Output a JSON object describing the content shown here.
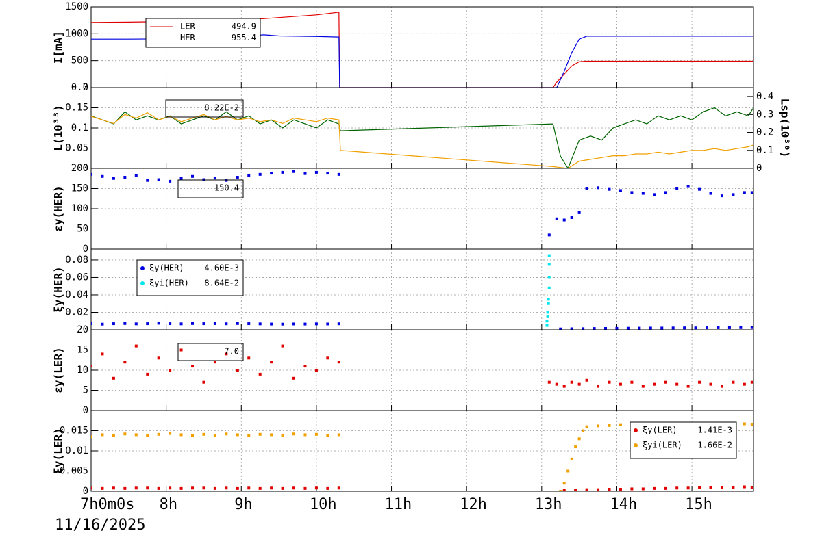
{
  "chart_data": [
    {
      "type": "line",
      "ylabel": "I[mA]",
      "xlim": [
        7,
        15.82
      ],
      "xticks": [
        7,
        8,
        9,
        10,
        11,
        12,
        13,
        14,
        15
      ],
      "ylim": [
        0,
        1500
      ],
      "yticks": [
        0,
        500,
        1000,
        1500
      ],
      "grid": true,
      "series": [
        {
          "name": "LER",
          "legend_value": "494.9",
          "color": "#e00000",
          "x": [
            7,
            7.5,
            8,
            8.5,
            9,
            9.3,
            9.5,
            10,
            10.3,
            10.31,
            11,
            12,
            13,
            13.15,
            13.2,
            13.3,
            13.4,
            13.5,
            13.6,
            14,
            15,
            15.82
          ],
          "values": [
            1210,
            1215,
            1225,
            1240,
            1260,
            1280,
            1300,
            1350,
            1400,
            0,
            0,
            0,
            0,
            0,
            100,
            250,
            400,
            480,
            490,
            490,
            490,
            490
          ]
        },
        {
          "name": "HER",
          "legend_value": "955.4",
          "color": "#0000e0",
          "x": [
            7,
            7.5,
            8,
            8.5,
            9,
            9.3,
            9.5,
            10,
            10.3,
            10.31,
            11,
            12,
            13,
            13.15,
            13.2,
            13.3,
            13.4,
            13.5,
            13.6,
            14,
            15,
            15.82
          ],
          "values": [
            900,
            900,
            905,
            915,
            950,
            980,
            960,
            950,
            940,
            0,
            0,
            0,
            0,
            0,
            0,
            300,
            650,
            900,
            955,
            955,
            955,
            955
          ]
        }
      ]
    },
    {
      "type": "line",
      "ylabel": "L(10³³)",
      "y2label": "Lsp(10³⁰)",
      "legend_text": "8.22E-2",
      "xlim": [
        7,
        15.82
      ],
      "xticks": [
        7,
        8,
        9,
        10,
        11,
        12,
        13,
        14,
        15
      ],
      "ylim": [
        0,
        0.2
      ],
      "yticks": [
        0,
        0.05,
        0.1,
        0.15,
        0.2
      ],
      "y2lim": [
        0,
        0.45
      ],
      "y2ticks": [
        0,
        0.1,
        0.2,
        0.3,
        0.4
      ],
      "grid": true,
      "series": [
        {
          "color": "#006400",
          "x": [
            7.0,
            7.15,
            7.3,
            7.45,
            7.6,
            7.75,
            7.9,
            8.05,
            8.2,
            8.35,
            8.5,
            8.65,
            8.8,
            8.95,
            9.1,
            9.25,
            9.4,
            9.55,
            9.7,
            9.85,
            10.0,
            10.15,
            10.3,
            10.32,
            13.15,
            13.25,
            13.35,
            13.5,
            13.65,
            13.8,
            13.95,
            14.1,
            14.25,
            14.4,
            14.55,
            14.7,
            14.85,
            15.0,
            15.15,
            15.3,
            15.45,
            15.6,
            15.75,
            15.82
          ],
          "values": [
            0.13,
            0.12,
            0.11,
            0.14,
            0.12,
            0.13,
            0.12,
            0.13,
            0.11,
            0.12,
            0.13,
            0.12,
            0.14,
            0.12,
            0.13,
            0.11,
            0.12,
            0.1,
            0.12,
            0.11,
            0.1,
            0.12,
            0.11,
            0.093,
            0.11,
            0.03,
            0.0,
            0.07,
            0.08,
            0.07,
            0.1,
            0.11,
            0.12,
            0.11,
            0.13,
            0.12,
            0.13,
            0.12,
            0.14,
            0.15,
            0.13,
            0.14,
            0.13,
            0.15
          ]
        },
        {
          "color": "#f0a000",
          "axis": "y2",
          "x": [
            7.0,
            7.15,
            7.3,
            7.45,
            7.6,
            7.75,
            7.9,
            8.05,
            8.2,
            8.35,
            8.5,
            8.65,
            8.8,
            8.95,
            9.1,
            9.25,
            9.4,
            9.55,
            9.7,
            9.85,
            10.0,
            10.15,
            10.3,
            10.32,
            13.15,
            13.25,
            13.35,
            13.5,
            13.65,
            13.8,
            13.95,
            14.1,
            14.25,
            14.4,
            14.55,
            14.7,
            14.85,
            15.0,
            15.15,
            15.3,
            15.45,
            15.6,
            15.75,
            15.82
          ],
          "values": [
            0.29,
            0.27,
            0.25,
            0.3,
            0.28,
            0.31,
            0.27,
            0.29,
            0.26,
            0.28,
            0.3,
            0.27,
            0.29,
            0.27,
            0.28,
            0.26,
            0.27,
            0.25,
            0.28,
            0.27,
            0.26,
            0.28,
            0.27,
            0.1,
            0.01,
            0.005,
            0.0,
            0.04,
            0.05,
            0.06,
            0.07,
            0.07,
            0.08,
            0.08,
            0.09,
            0.08,
            0.09,
            0.1,
            0.1,
            0.11,
            0.1,
            0.11,
            0.12,
            0.13
          ]
        }
      ]
    },
    {
      "type": "scatter",
      "ylabel": "εy(HER)",
      "legend_text": "150.4",
      "xlim": [
        7,
        15.82
      ],
      "xticks": [
        7,
        8,
        9,
        10,
        11,
        12,
        13,
        14,
        15
      ],
      "ylim": [
        0,
        200
      ],
      "yticks": [
        0,
        50,
        100,
        150,
        200
      ],
      "grid": true,
      "series": [
        {
          "color": "#0000e0",
          "x": [
            7.0,
            7.15,
            7.3,
            7.45,
            7.6,
            7.75,
            7.9,
            8.05,
            8.2,
            8.35,
            8.5,
            8.65,
            8.8,
            8.95,
            9.1,
            9.25,
            9.4,
            9.55,
            9.7,
            9.85,
            10.0,
            10.15,
            10.3,
            13.1,
            13.2,
            13.3,
            13.4,
            13.5,
            13.6,
            13.75,
            13.9,
            14.05,
            14.2,
            14.35,
            14.5,
            14.65,
            14.8,
            14.95,
            15.1,
            15.25,
            15.4,
            15.55,
            15.7,
            15.8
          ],
          "values": [
            185,
            180,
            175,
            178,
            182,
            170,
            172,
            168,
            175,
            180,
            172,
            176,
            170,
            178,
            182,
            185,
            188,
            190,
            192,
            187,
            190,
            188,
            185,
            35,
            75,
            72,
            78,
            90,
            150,
            152,
            148,
            145,
            140,
            138,
            135,
            140,
            150,
            155,
            148,
            138,
            132,
            135,
            140,
            140
          ]
        }
      ]
    },
    {
      "type": "scatter",
      "ylabel": "ξy(HER)",
      "xlim": [
        7,
        15.82
      ],
      "xticks": [
        7,
        8,
        9,
        10,
        11,
        12,
        13,
        14,
        15
      ],
      "ylim": [
        0,
        0.0925
      ],
      "yticks": [
        0.02,
        0.04,
        0.06,
        0.08
      ],
      "grid": true,
      "series": [
        {
          "name": "ξy(HER)",
          "legend_value": "4.60E-3",
          "color": "#0000e0",
          "x": [
            7.0,
            7.15,
            7.3,
            7.45,
            7.6,
            7.75,
            7.9,
            8.05,
            8.2,
            8.35,
            8.5,
            8.65,
            8.8,
            8.95,
            9.1,
            9.25,
            9.4,
            9.55,
            9.7,
            9.85,
            10.0,
            10.15,
            10.3,
            13.25,
            13.4,
            13.55,
            13.7,
            13.85,
            14.0,
            14.15,
            14.3,
            14.45,
            14.6,
            14.75,
            14.9,
            15.05,
            15.2,
            15.35,
            15.5,
            15.65,
            15.8
          ],
          "values": [
            0.007,
            0.0065,
            0.007,
            0.0072,
            0.0068,
            0.007,
            0.0075,
            0.007,
            0.0068,
            0.0072,
            0.007,
            0.0071,
            0.0069,
            0.0072,
            0.007,
            0.0068,
            0.0066,
            0.0065,
            0.0067,
            0.0066,
            0.0068,
            0.0067,
            0.0069,
            0.001,
            0.0012,
            0.0013,
            0.0015,
            0.0016,
            0.0017,
            0.0018,
            0.0019,
            0.002,
            0.002,
            0.0021,
            0.0022,
            0.0022,
            0.0023,
            0.0024,
            0.0024,
            0.0025,
            0.0026
          ]
        },
        {
          "name": "ξyi(HER)",
          "legend_value": "8.64E-2",
          "color": "#00e5ee",
          "x": [
            13.07,
            13.07,
            13.08,
            13.08,
            13.09,
            13.09,
            13.1,
            13.1,
            13.1,
            13.1
          ],
          "values": [
            0.005,
            0.01,
            0.015,
            0.02,
            0.03,
            0.035,
            0.048,
            0.06,
            0.075,
            0.085
          ]
        }
      ]
    },
    {
      "type": "scatter",
      "ylabel": "εy(LER)",
      "legend_text": "7.0",
      "xlim": [
        7,
        15.82
      ],
      "xticks": [
        7,
        8,
        9,
        10,
        11,
        12,
        13,
        14,
        15
      ],
      "ylim": [
        0,
        20
      ],
      "yticks": [
        0,
        5,
        10,
        15,
        20
      ],
      "grid": true,
      "series": [
        {
          "color": "#e00000",
          "x": [
            7.0,
            7.15,
            7.3,
            7.45,
            7.6,
            7.75,
            7.9,
            8.05,
            8.2,
            8.35,
            8.5,
            8.65,
            8.8,
            8.95,
            9.1,
            9.25,
            9.4,
            9.55,
            9.7,
            9.85,
            10.0,
            10.15,
            10.3,
            13.1,
            13.2,
            13.3,
            13.4,
            13.5,
            13.6,
            13.75,
            13.9,
            14.05,
            14.2,
            14.35,
            14.5,
            14.65,
            14.8,
            14.95,
            15.1,
            15.25,
            15.4,
            15.55,
            15.7,
            15.8
          ],
          "values": [
            11,
            14,
            8,
            12,
            16,
            9,
            13,
            10,
            15,
            11,
            7,
            12,
            14,
            10,
            13,
            9,
            12,
            16,
            8,
            11,
            10,
            13,
            12,
            7,
            6.5,
            6,
            7,
            6.5,
            7.5,
            6,
            7,
            6.5,
            7,
            6,
            6.5,
            7,
            6.5,
            6,
            7,
            6.5,
            6,
            7,
            6.5,
            7
          ]
        }
      ]
    },
    {
      "type": "scatter",
      "ylabel": "ξy(LER)",
      "date": "11/16/2025",
      "xlim": [
        7,
        15.82
      ],
      "xticks": [
        {
          "value": 7,
          "label": "7h0m0s"
        },
        {
          "value": 8,
          "label": "8h"
        },
        {
          "value": 9,
          "label": "9h"
        },
        {
          "value": 10,
          "label": "10h"
        },
        {
          "value": 11,
          "label": "11h"
        },
        {
          "value": 12,
          "label": "12h"
        },
        {
          "value": 13,
          "label": "13h"
        },
        {
          "value": 14,
          "label": "14h"
        },
        {
          "value": 15,
          "label": "15h"
        }
      ],
      "ylim": [
        0,
        0.02
      ],
      "yticks": [
        0,
        0.005,
        0.01,
        0.015
      ],
      "grid": true,
      "series": [
        {
          "name": "ξy(LER)",
          "legend_value": "1.41E-3",
          "color": "#e00000",
          "x": [
            7.0,
            7.15,
            7.3,
            7.45,
            7.6,
            7.75,
            7.9,
            8.05,
            8.2,
            8.35,
            8.5,
            8.65,
            8.8,
            8.95,
            9.1,
            9.25,
            9.4,
            9.55,
            9.7,
            9.85,
            10.0,
            10.15,
            10.3,
            13.3,
            13.45,
            13.6,
            13.75,
            13.9,
            14.05,
            14.2,
            14.35,
            14.5,
            14.65,
            14.8,
            14.95,
            15.1,
            15.25,
            15.4,
            15.55,
            15.7,
            15.8
          ],
          "values": [
            0.0008,
            0.0007,
            0.0008,
            0.0007,
            0.0008,
            0.0008,
            0.0007,
            0.0008,
            0.0007,
            0.0008,
            0.0008,
            0.0007,
            0.0008,
            0.0007,
            0.0008,
            0.0007,
            0.0008,
            0.0007,
            0.0008,
            0.0007,
            0.0008,
            0.0007,
            0.0008,
            0.0002,
            0.0003,
            0.0004,
            0.0004,
            0.0005,
            0.0005,
            0.0006,
            0.0006,
            0.0007,
            0.0007,
            0.0008,
            0.0008,
            0.0009,
            0.0009,
            0.001,
            0.001,
            0.0011,
            0.001
          ]
        },
        {
          "name": "ξyi(LER)",
          "legend_value": "1.66E-2",
          "color": "#f0a000",
          "x": [
            7.0,
            7.15,
            7.3,
            7.45,
            7.6,
            7.75,
            7.9,
            8.05,
            8.2,
            8.35,
            8.5,
            8.65,
            8.8,
            8.95,
            9.1,
            9.25,
            9.4,
            9.55,
            9.7,
            9.85,
            10.0,
            10.15,
            10.3,
            13.25,
            13.3,
            13.35,
            13.4,
            13.45,
            13.5,
            13.55,
            13.6,
            13.75,
            13.9,
            14.05,
            14.2,
            14.35,
            14.5,
            14.65,
            14.8,
            14.95,
            15.1,
            15.25,
            15.4,
            15.55,
            15.7,
            15.8
          ],
          "values": [
            0.0135,
            0.014,
            0.0138,
            0.0142,
            0.014,
            0.0139,
            0.0141,
            0.0143,
            0.014,
            0.0138,
            0.0141,
            0.0139,
            0.0142,
            0.014,
            0.0138,
            0.0141,
            0.014,
            0.0139,
            0.0142,
            0.014,
            0.0141,
            0.0139,
            0.014,
            0,
            0.002,
            0.005,
            0.008,
            0.011,
            0.013,
            0.015,
            0.016,
            0.0162,
            0.0163,
            0.0165,
            0.0166,
            0.0164,
            0.0165,
            0.0166,
            0.0164,
            0.0165,
            0.0166,
            0.0167,
            0.0165,
            0.0166,
            0.0167,
            0.0166
          ]
        }
      ]
    }
  ]
}
